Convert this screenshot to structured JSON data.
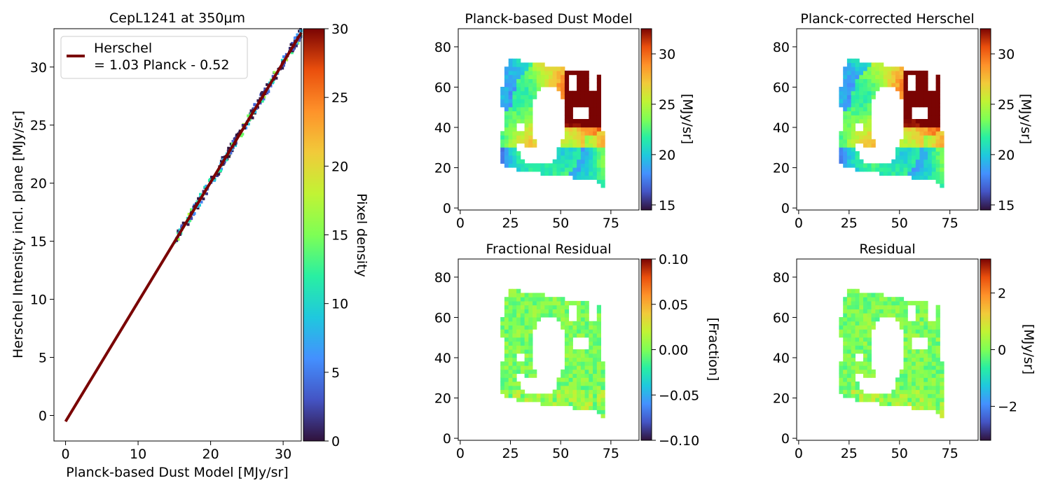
{
  "figure": {
    "colors": {
      "frame": "#000000",
      "fit_line": "#7a0403",
      "text": "#000000"
    }
  },
  "chart_data": [
    {
      "id": "scatter",
      "type": "scatter",
      "title": "CepL1241 at 350μm",
      "xlabel": "Planck-based Dust Model [MJy/sr]",
      "ylabel": "Herschel Intensity incl. plane [MJy/sr]",
      "xlim": [
        -1.6,
        32.5
      ],
      "ylim": [
        -2.2,
        33.3
      ],
      "xticks": [
        0,
        10,
        20,
        30
      ],
      "yticks": [
        0,
        5,
        10,
        15,
        20,
        25,
        30
      ],
      "grid": false,
      "legend": {
        "position": "top-left",
        "entries": [
          "Herschel",
          "= 1.03 Planck - 0.52"
        ]
      },
      "fit": {
        "slope": 1.03,
        "intercept": -0.52,
        "x_range": [
          0,
          32.5
        ],
        "color": "#7a0403"
      },
      "point_cloud": {
        "x_range": [
          15.0,
          32.5
        ],
        "density_max": 30
      },
      "colorbar": {
        "label": "Pixel density",
        "range": [
          0,
          30
        ],
        "ticks": [
          0,
          5,
          10,
          15,
          20,
          25,
          30
        ],
        "colormap": "turbo"
      }
    },
    {
      "id": "dust_model",
      "type": "heatmap",
      "title": "Planck-based Dust Model",
      "xlim": [
        -1,
        89
      ],
      "ylim": [
        -1,
        89
      ],
      "xticks": [
        0,
        25,
        50,
        75
      ],
      "yticks": [
        0,
        20,
        40,
        60,
        80
      ],
      "colorbar": {
        "label": "[MJy/sr]",
        "range": [
          14.5,
          32.5
        ],
        "ticks": [
          15,
          20,
          25,
          30
        ],
        "colormap": "turbo"
      }
    },
    {
      "id": "corrected",
      "type": "heatmap",
      "title": "Planck-corrected Herschel",
      "xlim": [
        -1,
        89
      ],
      "ylim": [
        -1,
        89
      ],
      "xticks": [
        0,
        25,
        50,
        75
      ],
      "yticks": [
        0,
        20,
        40,
        60,
        80
      ],
      "colorbar": {
        "label": "[MJy/sr]",
        "range": [
          14.5,
          32.5
        ],
        "ticks": [
          15,
          20,
          25,
          30
        ],
        "colormap": "turbo"
      }
    },
    {
      "id": "frac_residual",
      "type": "heatmap",
      "title": "Fractional Residual",
      "xlim": [
        -1,
        89
      ],
      "ylim": [
        -1,
        89
      ],
      "xticks": [
        0,
        25,
        50,
        75
      ],
      "yticks": [
        0,
        20,
        40,
        60,
        80
      ],
      "colorbar": {
        "label": "[Fraction]",
        "range": [
          -0.1,
          0.1
        ],
        "ticks": [
          -0.1,
          -0.05,
          0.0,
          0.05,
          0.1
        ],
        "tick_labels": [
          "−0.10",
          "−0.05",
          "0.00",
          "0.05",
          "0.10"
        ],
        "colormap": "turbo"
      }
    },
    {
      "id": "residual",
      "type": "heatmap",
      "title": "Residual",
      "xlim": [
        -1,
        89
      ],
      "ylim": [
        -1,
        89
      ],
      "xticks": [
        0,
        25,
        50,
        75
      ],
      "yticks": [
        0,
        20,
        40,
        60,
        80
      ],
      "colorbar": {
        "label": "[MJy/sr]",
        "range": [
          -3.2,
          3.2
        ],
        "ticks": [
          -2,
          0,
          2
        ],
        "tick_labels": [
          "−2",
          "0",
          "2"
        ],
        "colormap": "turbo"
      }
    }
  ]
}
